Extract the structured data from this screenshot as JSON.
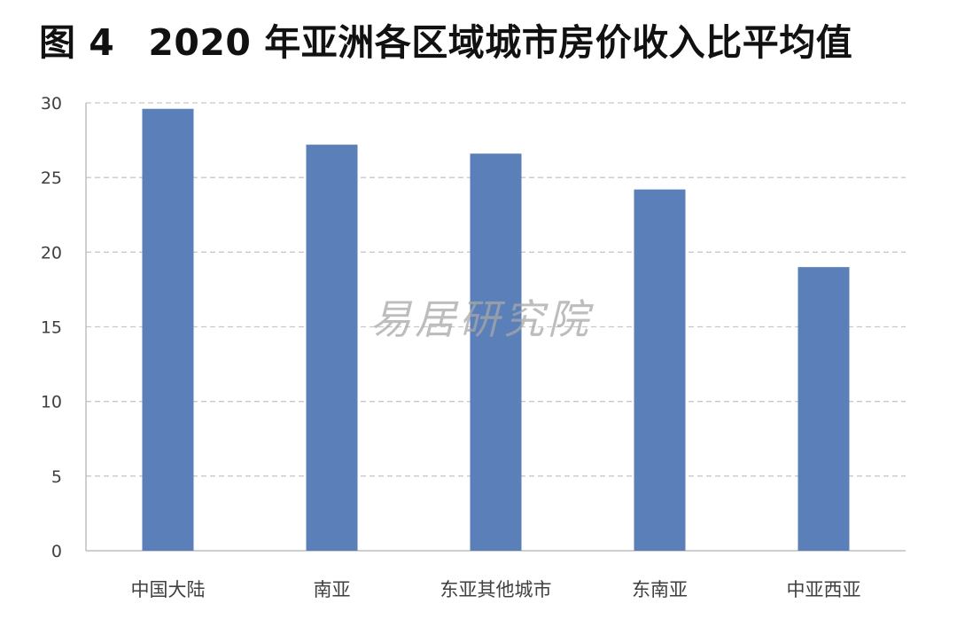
{
  "title": {
    "figure_label": "图 4",
    "text": "2020 年亚洲各区域城市房价收入比平均值"
  },
  "watermark": "易居研究院",
  "colors": {
    "bar": "#5b7fb8",
    "grid": "#c8c8c8",
    "axis": "#bfbfbf"
  },
  "chart_data": {
    "type": "bar",
    "title": "2020 年亚洲各区域城市房价收入比平均值",
    "categories": [
      "中国大陆",
      "南亚",
      "东亚其他城市",
      "东南亚",
      "中亚西亚"
    ],
    "values": [
      29.6,
      27.2,
      26.6,
      24.2,
      19.0
    ],
    "ylim": [
      0,
      30
    ],
    "yticks": [
      0,
      5,
      10,
      15,
      20,
      25,
      30
    ],
    "xlabel": "",
    "ylabel": "",
    "grid": true,
    "grid_style": "dashed",
    "legend": "none"
  }
}
